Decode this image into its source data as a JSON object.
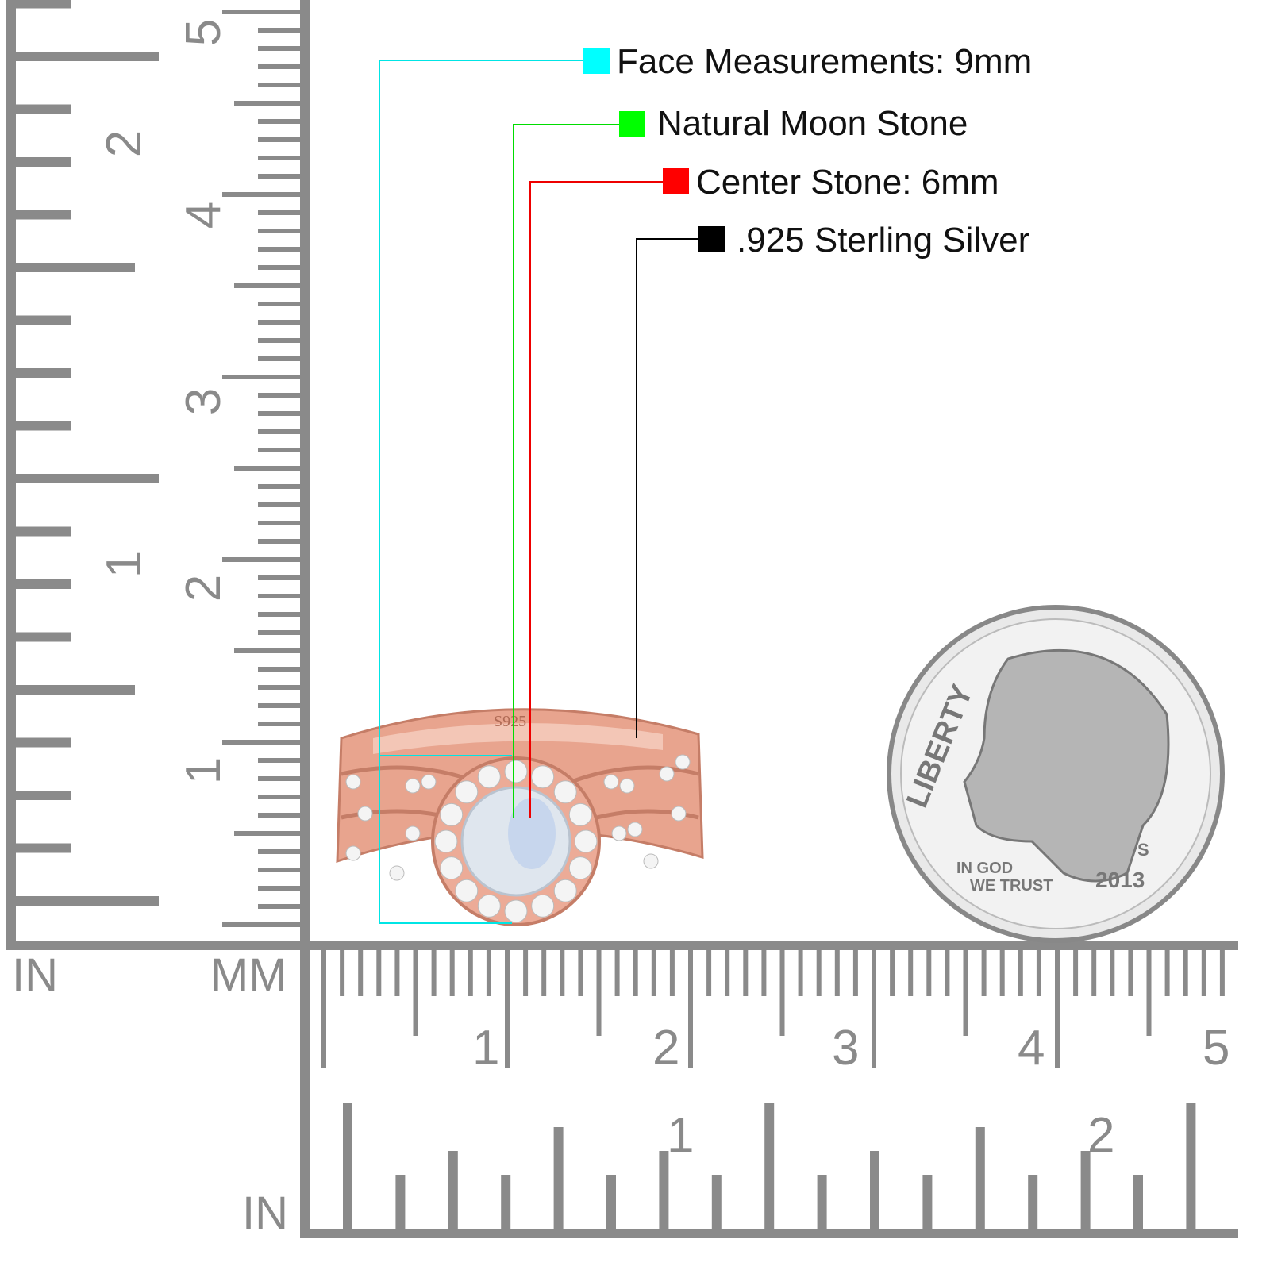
{
  "legend": [
    {
      "label": "Face Measurements: 9mm",
      "color": "#00ffff"
    },
    {
      "label": "Natural Moon Stone",
      "color": "#00ff00"
    },
    {
      "label": "Center Stone: 6mm",
      "color": "#ff0000"
    },
    {
      "label": ".925 Sterling Silver",
      "color": "#000000"
    }
  ],
  "rulers": {
    "vertical_in_label": "IN",
    "vertical_mm_label": "MM",
    "bottom_in_label": "IN",
    "vertical_in_numbers": [
      "2",
      "1"
    ],
    "vertical_mm_numbers": [
      "5",
      "4",
      "3",
      "2",
      "1"
    ],
    "bottom_mm_numbers": [
      "1",
      "2",
      "3",
      "4",
      "5"
    ],
    "bottom_in_numbers": [
      "1",
      "2"
    ],
    "color": "#8a8a8a"
  },
  "ring": {
    "stamp": "S925",
    "metal_color": "#e8a48e",
    "stone_color": "#dfe6ee"
  },
  "coin": {
    "motto_top": "LIBERTY",
    "motto_bottom_1": "IN GOD",
    "motto_bottom_2": "WE TRUST",
    "year": "2013",
    "mint": "S"
  }
}
